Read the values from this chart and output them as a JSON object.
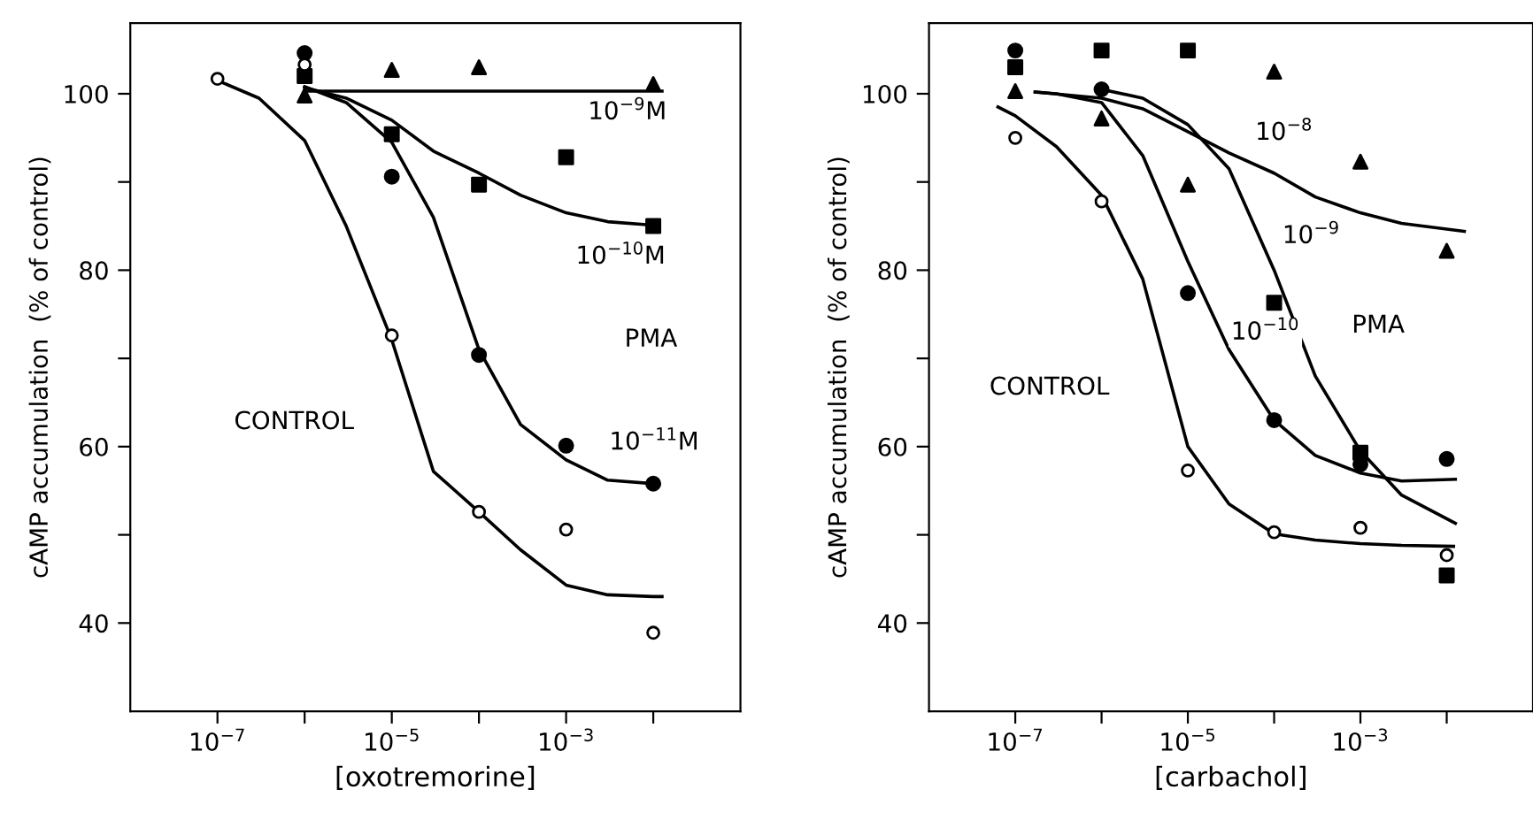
{
  "chart_data": [
    {
      "type": "scatter",
      "xlabel": "[oxotremorine]",
      "ylabel": "cAMP accumulation  (% of control)",
      "log": "x",
      "grid": false,
      "xlim": [
        1e-08,
        0.1
      ],
      "xticks": [
        {
          "value": 1e-07,
          "label": "10$^{−7}$"
        },
        {
          "value": 1e-06,
          "label": null
        },
        {
          "value": 1e-05,
          "label": "10$^{−5}$"
        },
        {
          "value": 0.0001,
          "label": null
        },
        {
          "value": 0.001,
          "label": "10$^{−3}$"
        },
        {
          "value": 0.01,
          "label": null
        }
      ],
      "ylim": [
        30,
        108
      ],
      "yticks": [
        40,
        {
          "value": 50,
          "label": null
        },
        60,
        {
          "value": 70,
          "label": null
        },
        80,
        {
          "value": 90,
          "label": null
        },
        100
      ],
      "series": [
        {
          "marker": "circle",
          "color": "#ffffff",
          "x": [
            1e-07,
            1e-06,
            1e-05,
            0.0001,
            0.001,
            0.01
          ],
          "values": [
            101.7,
            103.3,
            72.6,
            52.6,
            50.6,
            38.9
          ]
        },
        {
          "marker": "circle",
          "color": "#000000",
          "x": [
            1e-06,
            1e-05,
            0.0001,
            0.001,
            0.01
          ],
          "values": [
            104.6,
            90.6,
            70.4,
            60.1,
            55.8
          ]
        },
        {
          "marker": "square",
          "color": "#000000",
          "x": [
            1e-06,
            1e-05,
            0.0001,
            0.001,
            0.01
          ],
          "values": [
            102,
            95.4,
            89.7,
            92.8,
            85.0
          ]
        },
        {
          "marker": "triangle",
          "color": "#000000",
          "x": [
            1e-06,
            1e-05,
            0.0001,
            0.01
          ],
          "values": [
            99.8,
            102.7,
            103.0,
            101.1
          ]
        },
        {
          "type": "line",
          "color": "#000000",
          "x": [
            1e-07,
            3e-07,
            1e-06,
            3e-06,
            1e-05,
            3e-05,
            0.0001,
            0.0003,
            0.001,
            0.003,
            0.01,
            0.0126
          ],
          "values": [
            101.5,
            99.5,
            94.7,
            85,
            72.1,
            57.2,
            52.6,
            48.3,
            44.3,
            43.2,
            43,
            43
          ]
        },
        {
          "type": "line",
          "color": "#000000",
          "x": [
            1e-06,
            3e-06,
            1e-05,
            3e-05,
            0.0001,
            0.0003,
            0.001,
            0.003,
            0.01
          ],
          "values": [
            100.8,
            99,
            94.5,
            86,
            71,
            62.5,
            58.5,
            56.2,
            55.8
          ]
        },
        {
          "type": "line",
          "color": "#000000",
          "x": [
            1e-06,
            3e-06,
            1e-05,
            3e-05,
            0.0001,
            0.0003,
            0.001,
            0.003,
            0.01
          ],
          "values": [
            100.7,
            99.5,
            97,
            93.5,
            91,
            88.5,
            86.5,
            85.5,
            85.1
          ]
        },
        {
          "type": "line",
          "color": "#000000",
          "x": [
            1e-06,
            0.0126
          ],
          "values": [
            100.3,
            100.3
          ]
        }
      ],
      "annotations": [
        "10$^{−9}$M",
        "10$^{−10}$M",
        "PMA",
        "10$^{−11}$M",
        "CONTROL"
      ]
    },
    {
      "type": "scatter",
      "xlabel": "[carbachol]",
      "ylabel": "cAMP accumulation  (% of control)",
      "log": "x",
      "grid": false,
      "xlim": [
        1e-08,
        0.1
      ],
      "xticks": [
        {
          "value": 1e-07,
          "label": "10$^{−7}$"
        },
        {
          "value": 1e-06,
          "label": null
        },
        {
          "value": 1e-05,
          "label": "10$^{−5}$"
        },
        {
          "value": 0.0001,
          "label": null
        },
        {
          "value": 0.001,
          "label": "10$^{−3}$"
        },
        {
          "value": 0.01,
          "label": null
        }
      ],
      "ylim": [
        30,
        108
      ],
      "yticks": [
        40,
        {
          "value": 50,
          "label": null
        },
        60,
        {
          "value": 70,
          "label": null
        },
        80,
        {
          "value": 90,
          "label": null
        },
        100
      ],
      "series": [
        {
          "marker": "circle",
          "color": "#ffffff",
          "x": [
            1e-07,
            1e-06,
            1e-05,
            0.0001,
            0.001,
            0.01
          ],
          "values": [
            95.0,
            87.8,
            57.3,
            50.3,
            50.8,
            47.7
          ]
        },
        {
          "marker": "circle",
          "color": "#000000",
          "x": [
            1e-07,
            1e-06,
            1e-05,
            0.0001,
            0.001,
            0.01
          ],
          "values": [
            104.9,
            100.5,
            77.4,
            63.0,
            58.0,
            58.6
          ]
        },
        {
          "marker": "square",
          "color": "#000000",
          "x": [
            1e-07,
            1e-06,
            1e-05,
            0.0001,
            0.001,
            0.01
          ],
          "values": [
            103.0,
            104.9,
            104.9,
            76.3,
            59.3,
            45.4
          ]
        },
        {
          "marker": "triangle",
          "color": "#000000",
          "x": [
            1e-07,
            1e-06,
            1e-05,
            0.0001,
            0.001,
            0.01
          ],
          "values": [
            100.3,
            97.2,
            89.7,
            102.5,
            92.3,
            82.2
          ]
        },
        {
          "type": "line",
          "color": "#000000",
          "x": [
            6.3e-08,
            1e-07,
            3e-07,
            1e-06,
            3e-06,
            1e-05,
            3e-05,
            0.0001,
            0.0003,
            0.001,
            0.003,
            0.012
          ],
          "values": [
            98.5,
            97.5,
            94,
            88.5,
            79,
            60,
            53.5,
            50.1,
            49.4,
            49,
            48.8,
            48.7
          ]
        },
        {
          "type": "line",
          "color": "#000000",
          "x": [
            1.7e-07,
            3e-07,
            1e-06,
            3e-06,
            1e-05,
            3e-05,
            0.0001,
            0.0003,
            0.001,
            0.003,
            0.0126
          ],
          "values": [
            100.2,
            100,
            99,
            93,
            81,
            71,
            63,
            59,
            57,
            56.1,
            56.3
          ]
        },
        {
          "type": "line",
          "color": "#000000",
          "x": [
            1e-06,
            3e-06,
            1e-05,
            3e-05,
            0.0001,
            0.0003,
            0.001,
            0.003,
            0.0126
          ],
          "values": [
            100.5,
            99.5,
            96.5,
            91.5,
            80,
            68,
            59.5,
            54.5,
            51.3
          ]
        },
        {
          "type": "line",
          "color": "#000000",
          "x": [
            1.7e-07,
            1e-06,
            3e-06,
            1e-05,
            3e-05,
            0.0001,
            0.0003,
            0.001,
            0.003,
            0.016
          ],
          "values": [
            100.2,
            99.5,
            98.3,
            95.7,
            93.3,
            91,
            88.3,
            86.5,
            85.3,
            84.4
          ]
        }
      ],
      "annotations": [
        "10$^{−8}$",
        "10$^{−9}$",
        "10$^{−10}$",
        "PMA",
        "CONTROL"
      ]
    }
  ]
}
